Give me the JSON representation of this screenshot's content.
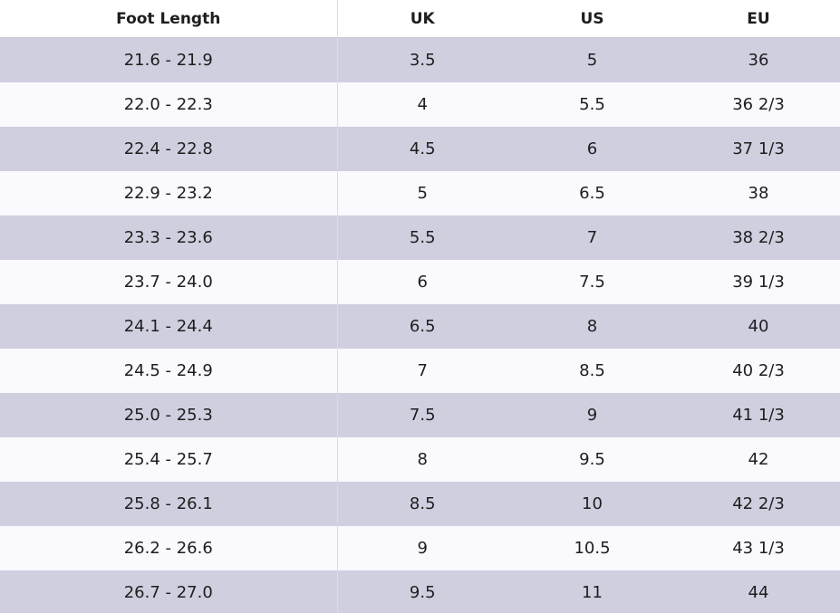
{
  "columns": [
    "Foot Length",
    "UK",
    "US",
    "EU"
  ],
  "rows": [
    [
      "21.6 - 21.9",
      "3.5",
      "5",
      "36"
    ],
    [
      "22.0 - 22.3",
      "4",
      "5.5",
      "36 2/3"
    ],
    [
      "22.4 - 22.8",
      "4.5",
      "6",
      "37 1/3"
    ],
    [
      "22.9 - 23.2",
      "5",
      "6.5",
      "38"
    ],
    [
      "23.3 - 23.6",
      "5.5",
      "7",
      "38 2/3"
    ],
    [
      "23.7 - 24.0",
      "6",
      "7.5",
      "39 1/3"
    ],
    [
      "24.1 - 24.4",
      "6.5",
      "8",
      "40"
    ],
    [
      "24.5 - 24.9",
      "7",
      "8.5",
      "40 2/3"
    ],
    [
      "25.0 - 25.3",
      "7.5",
      "9",
      "41 1/3"
    ],
    [
      "25.4 - 25.7",
      "8",
      "9.5",
      "42"
    ],
    [
      "25.8 - 26.1",
      "8.5",
      "10",
      "42 2/3"
    ],
    [
      "26.2 - 26.6",
      "9",
      "10.5",
      "43 1/3"
    ],
    [
      "26.7 - 27.0",
      "9.5",
      "11",
      "44"
    ]
  ],
  "colors": {
    "shaded_row": "#cfcfe0",
    "plain_row": "#f9f9fe",
    "header_bg": "#ffffff",
    "text": "#1e1e1e"
  }
}
